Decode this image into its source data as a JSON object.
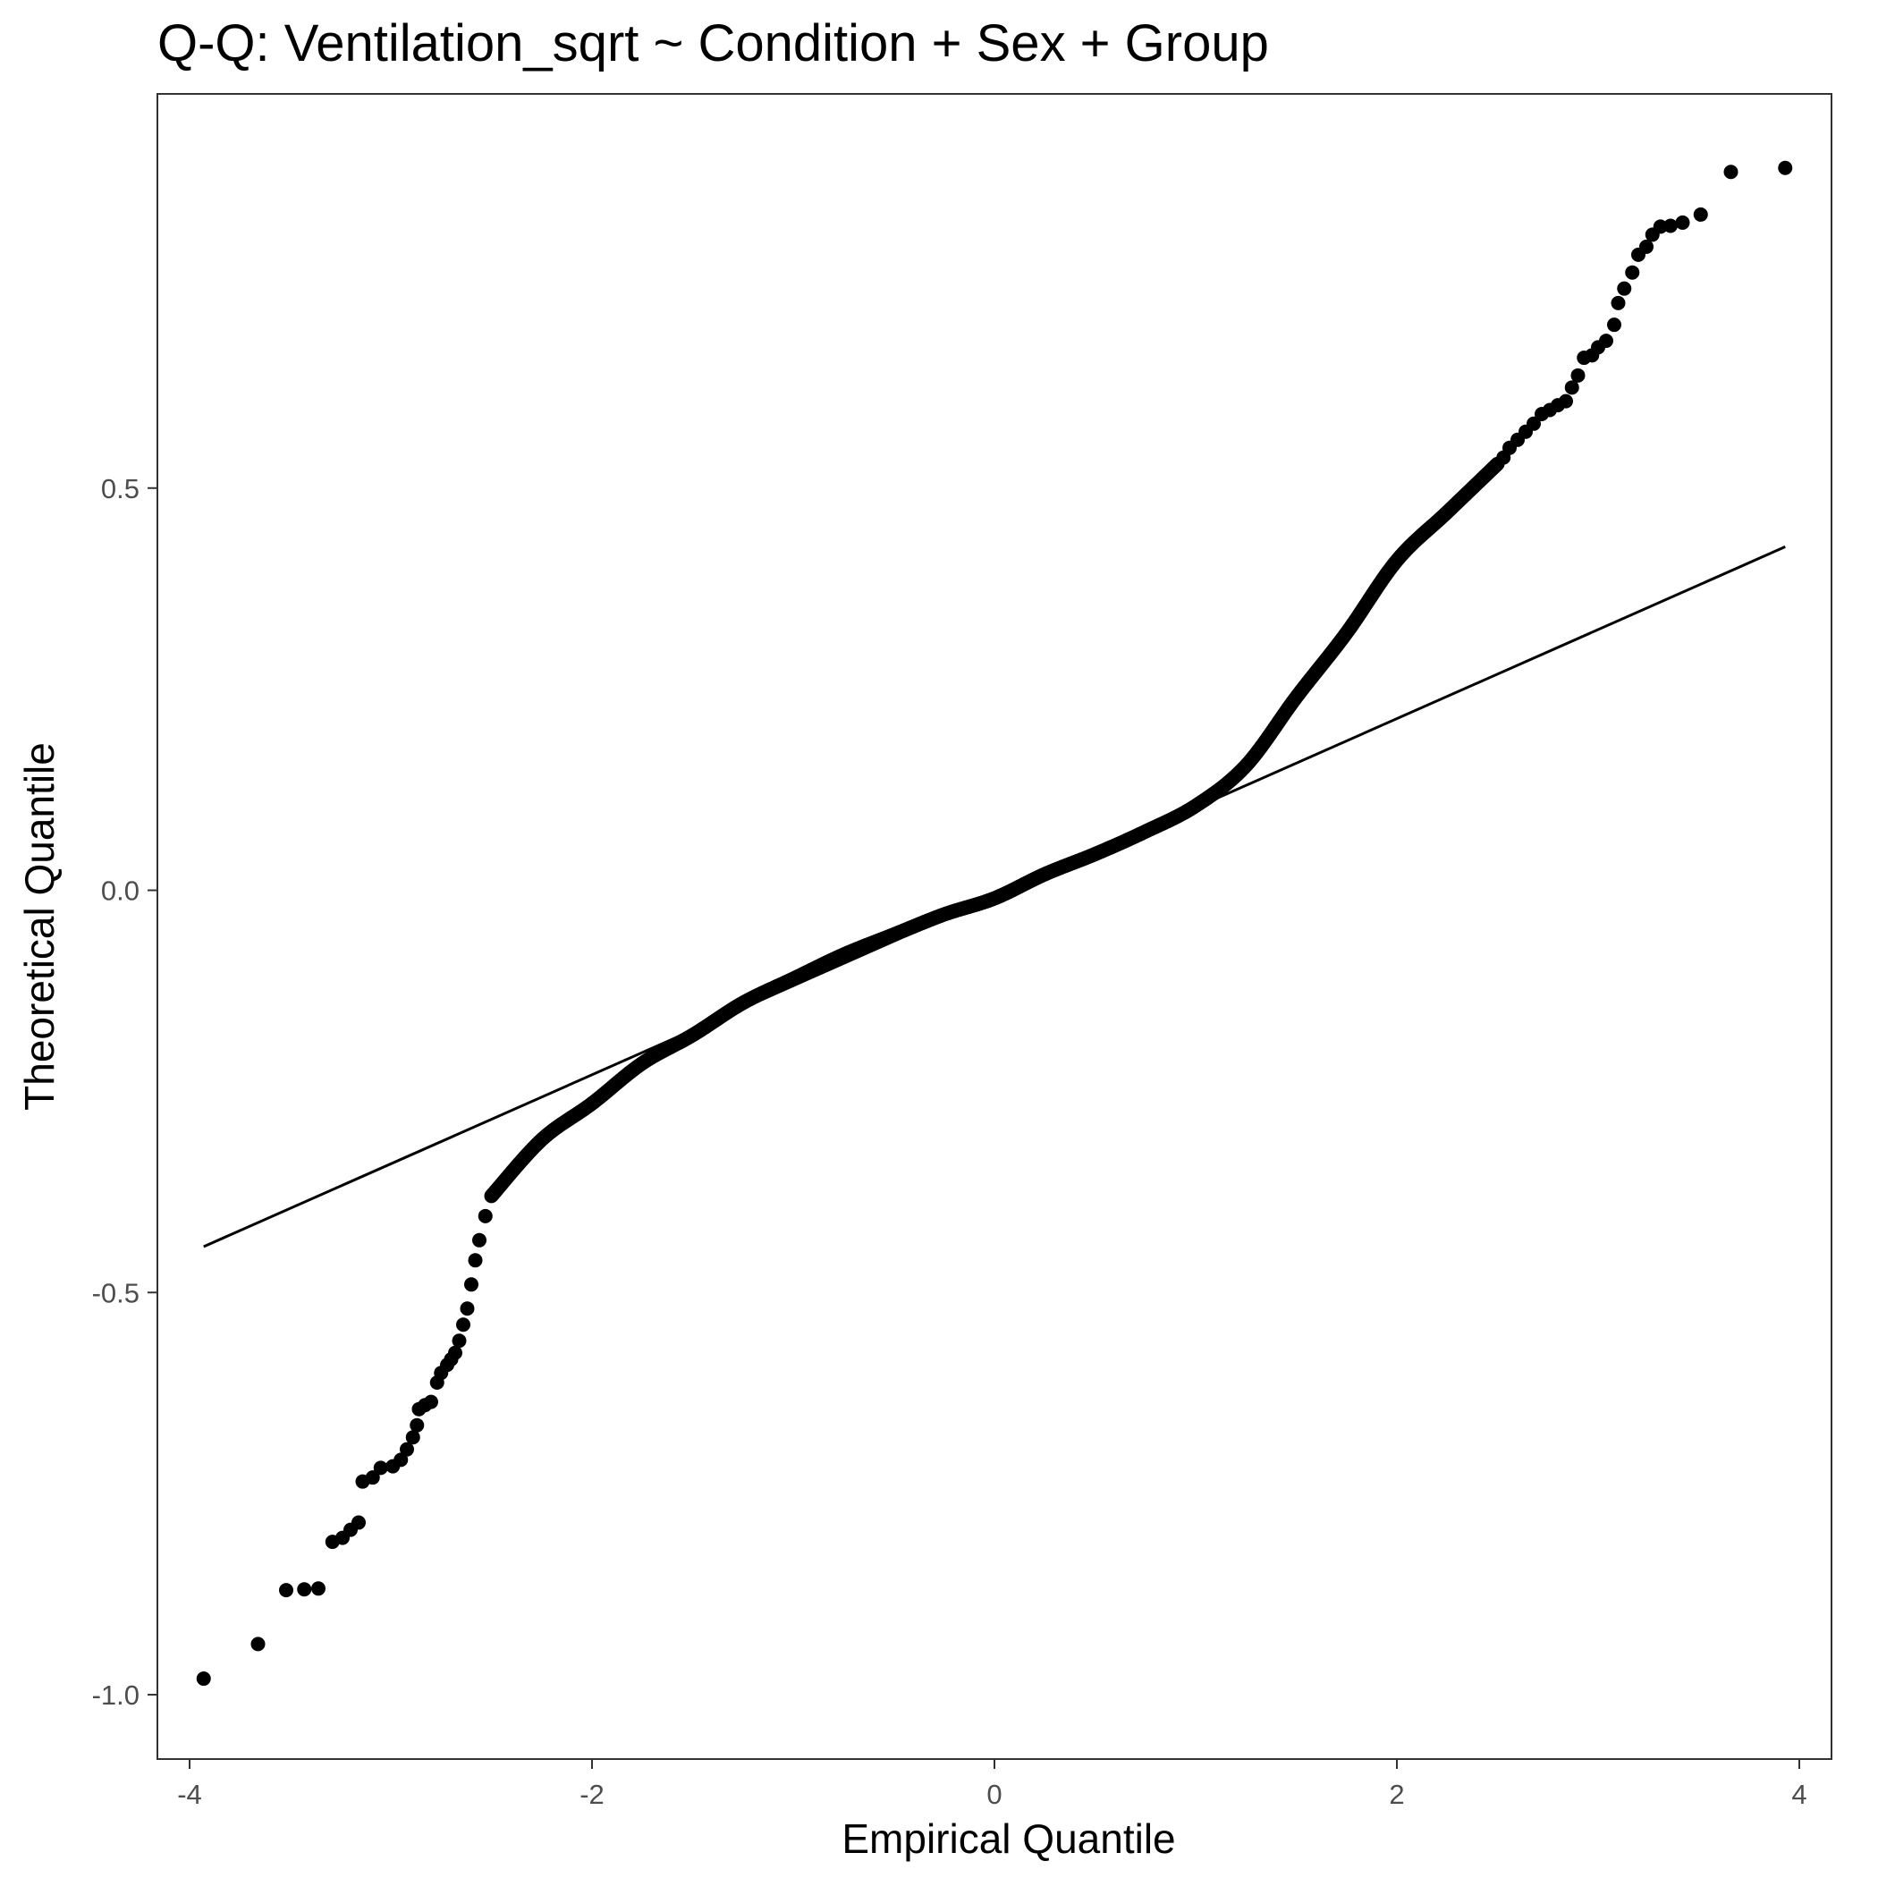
{
  "chart_data": {
    "type": "scatter",
    "title": "Q-Q: Ventilation_sqrt ~ Condition + Sex + Group",
    "xlabel": "Empirical Quantile",
    "ylabel": "Theoretical Quantile",
    "xlim": [
      -4.16,
      4.16
    ],
    "ylim": [
      -1.08,
      0.99
    ],
    "x_ticks": [
      -4,
      -2,
      0,
      2,
      4
    ],
    "x_tick_labels": [
      "-4",
      "-2",
      "0",
      "2",
      "4"
    ],
    "y_ticks": [
      -1.0,
      -0.5,
      0.0,
      0.5
    ],
    "y_tick_labels": [
      "-1.0",
      "-0.5",
      "0.0",
      "0.5"
    ],
    "grid": false,
    "legend": "none",
    "reference_line": {
      "x": [
        -3.93,
        3.93
      ],
      "y": [
        -0.443,
        0.427
      ]
    },
    "point_color": "#000000",
    "line_color": "#000000",
    "curve_knots": {
      "x": [
        -2.5,
        -2.25,
        -2.0,
        -1.75,
        -1.5,
        -1.25,
        -1.0,
        -0.75,
        -0.5,
        -0.25,
        0.0,
        0.25,
        0.5,
        0.75,
        1.0,
        1.25,
        1.5,
        1.75,
        2.0,
        2.25,
        2.5
      ],
      "y": [
        -0.38,
        -0.31,
        -0.265,
        -0.215,
        -0.18,
        -0.14,
        -0.11,
        -0.08,
        -0.055,
        -0.03,
        -0.01,
        0.02,
        0.045,
        0.073,
        0.105,
        0.155,
        0.24,
        0.32,
        0.41,
        0.47,
        0.53
      ]
    },
    "points": [
      {
        "x": -3.93,
        "y": -0.98
      },
      {
        "x": -3.66,
        "y": -0.937
      },
      {
        "x": -3.52,
        "y": -0.87
      },
      {
        "x": -3.43,
        "y": -0.869
      },
      {
        "x": -3.36,
        "y": -0.868
      },
      {
        "x": -3.29,
        "y": -0.81
      },
      {
        "x": -3.24,
        "y": -0.805
      },
      {
        "x": -3.2,
        "y": -0.795
      },
      {
        "x": -3.16,
        "y": -0.786
      },
      {
        "x": -3.14,
        "y": -0.735
      },
      {
        "x": -3.09,
        "y": -0.73
      },
      {
        "x": -3.05,
        "y": -0.718
      },
      {
        "x": -2.99,
        "y": -0.716
      },
      {
        "x": -2.95,
        "y": -0.708
      },
      {
        "x": -2.92,
        "y": -0.695
      },
      {
        "x": -2.89,
        "y": -0.68
      },
      {
        "x": -2.87,
        "y": -0.665
      },
      {
        "x": -2.86,
        "y": -0.645
      },
      {
        "x": -2.83,
        "y": -0.64
      },
      {
        "x": -2.8,
        "y": -0.636
      },
      {
        "x": -2.77,
        "y": -0.612
      },
      {
        "x": -2.75,
        "y": -0.6
      },
      {
        "x": -2.72,
        "y": -0.59
      },
      {
        "x": -2.7,
        "y": -0.583
      },
      {
        "x": -2.68,
        "y": -0.575
      },
      {
        "x": -2.66,
        "y": -0.56
      },
      {
        "x": -2.64,
        "y": -0.54
      },
      {
        "x": -2.62,
        "y": -0.52
      },
      {
        "x": -2.6,
        "y": -0.49
      },
      {
        "x": -2.58,
        "y": -0.46
      },
      {
        "x": -2.56,
        "y": -0.435
      },
      {
        "x": -2.53,
        "y": -0.405
      },
      {
        "x": 2.53,
        "y": 0.538
      },
      {
        "x": 2.56,
        "y": 0.55
      },
      {
        "x": 2.6,
        "y": 0.56
      },
      {
        "x": 2.64,
        "y": 0.57
      },
      {
        "x": 2.68,
        "y": 0.58
      },
      {
        "x": 2.72,
        "y": 0.592
      },
      {
        "x": 2.76,
        "y": 0.597
      },
      {
        "x": 2.8,
        "y": 0.603
      },
      {
        "x": 2.84,
        "y": 0.608
      },
      {
        "x": 2.87,
        "y": 0.625
      },
      {
        "x": 2.9,
        "y": 0.64
      },
      {
        "x": 2.93,
        "y": 0.662
      },
      {
        "x": 2.97,
        "y": 0.665
      },
      {
        "x": 3.0,
        "y": 0.675
      },
      {
        "x": 3.04,
        "y": 0.683
      },
      {
        "x": 3.08,
        "y": 0.703
      },
      {
        "x": 3.1,
        "y": 0.73
      },
      {
        "x": 3.13,
        "y": 0.748
      },
      {
        "x": 3.17,
        "y": 0.768
      },
      {
        "x": 3.2,
        "y": 0.79
      },
      {
        "x": 3.24,
        "y": 0.8
      },
      {
        "x": 3.27,
        "y": 0.815
      },
      {
        "x": 3.31,
        "y": 0.825
      },
      {
        "x": 3.36,
        "y": 0.826
      },
      {
        "x": 3.42,
        "y": 0.83
      },
      {
        "x": 3.51,
        "y": 0.84
      },
      {
        "x": 3.66,
        "y": 0.893
      },
      {
        "x": 3.93,
        "y": 0.898
      }
    ]
  }
}
